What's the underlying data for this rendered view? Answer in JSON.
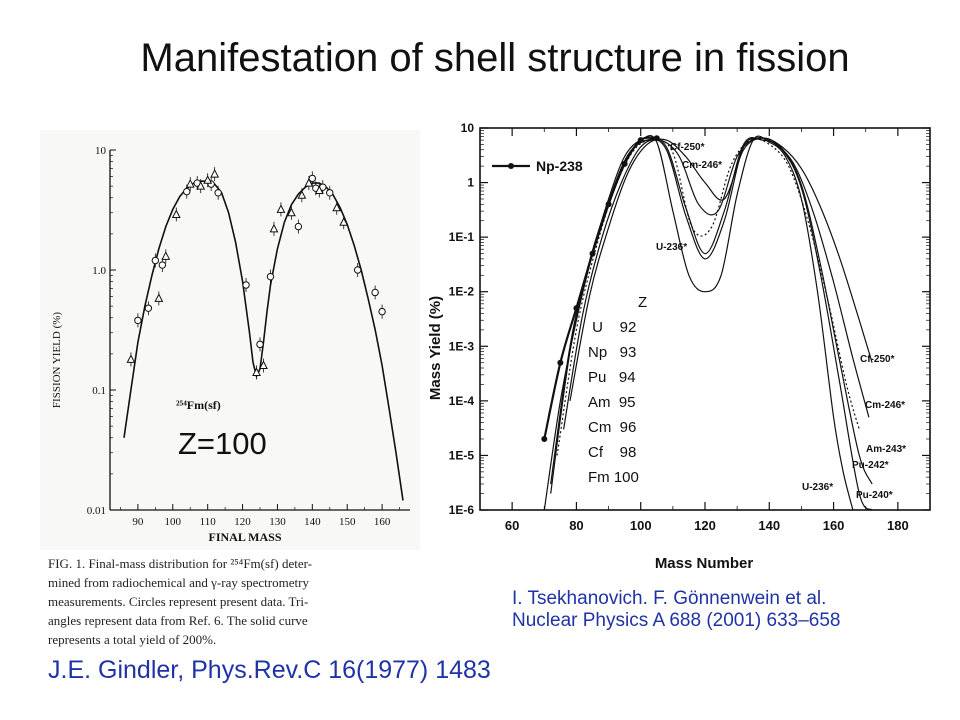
{
  "title": "Manifestation of shell structure in fission",
  "left_chart": {
    "yticks": [
      "10",
      "1.0",
      "0.1",
      "0.01"
    ],
    "xticks": [
      "90",
      "100",
      "110",
      "120",
      "130",
      "140",
      "150",
      "160"
    ],
    "ylabel": "FISSION YIELD (%)",
    "xlabel": "FINAL MASS",
    "annotation": "²⁵⁴Fm(sf)",
    "z_label": "Z=100",
    "caption": [
      "FIG. 1.  Final-mass distribution for ²⁵⁴Fm(sf) deter-",
      "mined from radiochemical and γ-ray spectrometry",
      "measurements.  Circles represent present data.  Tri-",
      "angles represent data from Ref. 6.  The solid curve",
      "represents a total yield of 200%."
    ]
  },
  "right_chart": {
    "yticks": [
      "10",
      "1",
      "1E-1",
      "1E-2",
      "1E-3",
      "1E-4",
      "1E-5",
      "1E-6"
    ],
    "xticks": [
      "60",
      "80",
      "100",
      "120",
      "140",
      "160",
      "180"
    ],
    "ylabel": "Mass Yield (%)",
    "xlabel": "Mass Number",
    "legend": "Np-238",
    "curve_labels": {
      "cf250_top": "Cf-250*",
      "cm246_top": "Cm-246*",
      "u236_mid": "U-236*",
      "cf250_right": "Cf-250*",
      "cm246_right": "Cm-246*",
      "am243": "Am-243*",
      "pu242": "Pu-242*",
      "u236_right": "U-236*",
      "pu240": "Pu-240*"
    }
  },
  "z_table": {
    "header": "Z",
    "rows": [
      " U    92",
      "Np   93",
      "Pu   94",
      "Am  95",
      "Cm  96",
      "Cf    98",
      "Fm 100"
    ]
  },
  "ref_left": "J.E. Gindler, Phys.Rev.C 16(1977) 1483",
  "ref_right": [
    "I. Tsekhanovich. F. Gönnenwein et al.",
    "Nuclear Physics A 688 (2001) 633–658"
  ],
  "chart_data": [
    {
      "type": "scatter",
      "title": "",
      "xlabel": "FINAL MASS",
      "ylabel": "FISSION YIELD (%)",
      "yscale": "log",
      "xlim": [
        82,
        168
      ],
      "ylim": [
        0.01,
        10
      ],
      "series": [
        {
          "name": "Circles represent present data",
          "marker": "circle",
          "x": [
            90,
            93,
            95,
            97,
            104,
            107,
            111,
            113,
            121,
            125,
            128,
            136,
            140,
            141,
            143,
            145,
            153,
            158,
            160
          ],
          "y": [
            0.38,
            0.48,
            1.2,
            1.1,
            4.5,
            5.3,
            5.2,
            4.4,
            0.75,
            0.24,
            0.88,
            2.3,
            5.8,
            4.8,
            4.9,
            4.4,
            1.0,
            0.65,
            0.45
          ]
        },
        {
          "name": "Triangles represent data from Ref. 6",
          "marker": "triangle",
          "x": [
            88,
            96,
            98,
            101,
            105,
            108,
            110,
            112,
            124,
            126,
            129,
            131,
            134,
            137,
            139,
            142,
            147,
            149
          ],
          "y": [
            0.18,
            0.58,
            1.3,
            2.9,
            5.2,
            5.0,
            5.6,
            6.3,
            0.14,
            0.16,
            2.2,
            3.2,
            3.0,
            4.2,
            5.3,
            4.6,
            3.3,
            2.5
          ]
        },
        {
          "name": "Solid curve (total yield 200%)",
          "marker": "line",
          "x": [
            86,
            88,
            90,
            92,
            94,
            96,
            98,
            100,
            102,
            104,
            106,
            108,
            110,
            112,
            114,
            116,
            118,
            120,
            122,
            123,
            124,
            125,
            126,
            127,
            128,
            130,
            132,
            134,
            136,
            138,
            140,
            142,
            144,
            146,
            148,
            150,
            152,
            154,
            156,
            158,
            160,
            162,
            164,
            166
          ],
          "y": [
            0.04,
            0.1,
            0.25,
            0.5,
            0.9,
            1.5,
            2.3,
            3.2,
            4.1,
            4.8,
            5.3,
            5.5,
            5.5,
            5.2,
            4.4,
            3.0,
            1.7,
            0.8,
            0.3,
            0.17,
            0.13,
            0.15,
            0.25,
            0.45,
            0.75,
            1.5,
            2.5,
            3.5,
            4.3,
            4.9,
            5.3,
            5.3,
            4.9,
            4.2,
            3.3,
            2.4,
            1.6,
            1.0,
            0.58,
            0.32,
            0.16,
            0.07,
            0.03,
            0.012
          ]
        }
      ]
    },
    {
      "type": "line",
      "title": "",
      "xlabel": "Mass Number",
      "ylabel": "Mass Yield (%)",
      "yscale": "log",
      "xlim": [
        50,
        190
      ],
      "ylim": [
        1e-06,
        10
      ],
      "series": [
        {
          "name": "Np-238",
          "style": "solid-dots",
          "x": [
            70,
            75,
            80,
            85,
            90,
            95,
            100,
            105
          ],
          "y": [
            2e-05,
            0.0005,
            0.005,
            0.05,
            0.4,
            2.2,
            6.0,
            6.5
          ]
        },
        {
          "name": "U-236*",
          "style": "solid",
          "x": [
            70,
            75,
            80,
            85,
            90,
            95,
            100,
            105,
            110,
            115,
            120,
            125,
            130,
            135,
            140,
            145,
            150,
            155,
            160,
            163,
            166
          ],
          "y": [
            1e-06,
            0.0001,
            0.003,
            0.05,
            0.5,
            3.0,
            6.0,
            5.5,
            0.3,
            0.02,
            0.01,
            0.02,
            0.6,
            6.0,
            5.5,
            3.0,
            0.5,
            0.01,
            5e-05,
            5e-06,
            1e-06
          ]
        },
        {
          "name": "Pu-240*",
          "style": "solid",
          "x": [
            72,
            78,
            84,
            90,
            96,
            102,
            108,
            114,
            120,
            126,
            132,
            138,
            144,
            150,
            156,
            162,
            168,
            172
          ],
          "y": [
            2e-06,
            0.0008,
            0.03,
            0.4,
            3.0,
            6.0,
            4.0,
            0.25,
            0.04,
            0.2,
            4.5,
            6.0,
            4.0,
            0.8,
            0.02,
            0.0002,
            2e-06,
            1e-06
          ]
        },
        {
          "name": "Pu-242*",
          "style": "solid",
          "x": [
            72,
            78,
            84,
            90,
            96,
            102,
            108,
            114,
            120,
            126,
            132,
            138,
            144,
            150,
            156,
            162,
            168,
            172
          ],
          "y": [
            3e-06,
            0.001,
            0.035,
            0.45,
            3.2,
            6.0,
            4.5,
            0.35,
            0.05,
            0.3,
            5.0,
            6.0,
            4.2,
            0.9,
            0.03,
            0.0005,
            1e-05,
            3e-06
          ]
        },
        {
          "name": "Am-243*",
          "style": "dotted",
          "x": [
            74,
            80,
            86,
            92,
            98,
            104,
            110,
            116,
            122,
            128,
            134,
            140,
            146,
            152,
            158,
            164,
            168
          ],
          "y": [
            1e-05,
            0.002,
            0.06,
            0.8,
            4.0,
            6.0,
            3.5,
            0.15,
            0.15,
            2.0,
            6.0,
            5.0,
            2.0,
            0.2,
            0.008,
            0.0002,
            3e-05
          ]
        },
        {
          "name": "Cm-246*",
          "style": "solid",
          "x": [
            76,
            82,
            88,
            94,
            100,
            106,
            112,
            118,
            124,
            130,
            136,
            142,
            148,
            154,
            160,
            166,
            171
          ],
          "y": [
            3e-05,
            0.004,
            0.1,
            1.0,
            4.5,
            6.0,
            3.0,
            0.4,
            0.3,
            3.0,
            6.5,
            5.0,
            2.0,
            0.25,
            0.015,
            0.0006,
            5e-05
          ]
        },
        {
          "name": "Cf-250*",
          "style": "solid",
          "x": [
            78,
            84,
            90,
            96,
            102,
            108,
            114,
            120,
            126,
            132,
            138,
            144,
            150,
            156,
            162,
            168,
            172
          ],
          "y": [
            0.0001,
            0.008,
            0.15,
            1.5,
            5.0,
            6.0,
            3.0,
            1.0,
            0.5,
            4.0,
            6.5,
            4.5,
            1.8,
            0.35,
            0.04,
            0.003,
            0.0005
          ]
        }
      ]
    }
  ]
}
